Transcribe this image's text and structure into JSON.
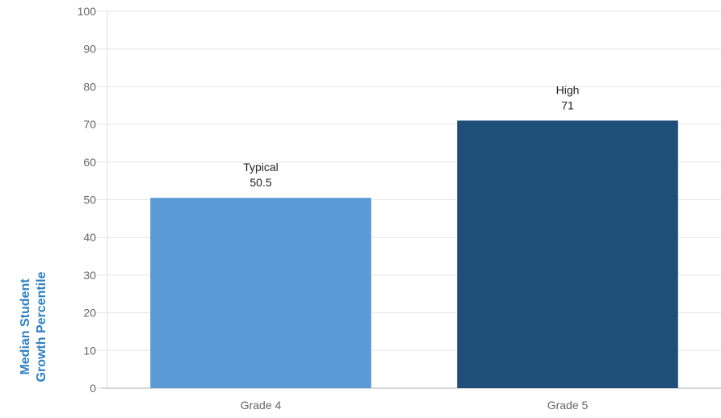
{
  "chart_data": {
    "type": "bar",
    "categories": [
      "Grade 4",
      "Grade 5"
    ],
    "values": [
      50.5,
      71
    ],
    "bar_labels": [
      "Typical",
      "High"
    ],
    "value_labels": [
      "50.5",
      "71"
    ],
    "ylabel_lines": [
      "Median Student",
      "Growth Percentile"
    ],
    "ylim": [
      0,
      100
    ],
    "yticks": [
      0,
      10,
      20,
      30,
      40,
      50,
      60,
      70,
      80,
      90,
      100
    ],
    "grid": true,
    "colors": {
      "bars": [
        "#5b9bd5",
        "#1f4e79"
      ],
      "axis_label": "#2f7fc1",
      "grid": "#e6e6e6",
      "tick_text": "#666666",
      "label_text": "#222222"
    }
  }
}
